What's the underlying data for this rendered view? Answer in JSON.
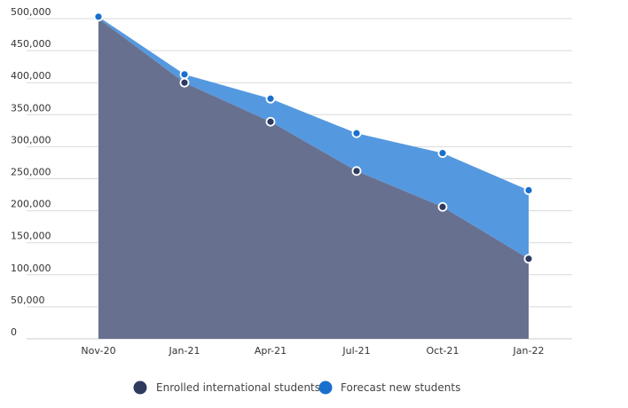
{
  "chart_data": {
    "type": "area",
    "stacked": true,
    "categories": [
      "Nov-20",
      "Jan-21",
      "Apr-21",
      "Jul-21",
      "Oct-21",
      "Jan-22"
    ],
    "y_ticks": [
      "0",
      "50,000",
      "100,000",
      "150,000",
      "200,000",
      "250,000",
      "300,000",
      "350,000",
      "400,000",
      "450,000",
      "500,000"
    ],
    "ylim": [
      0,
      500000
    ],
    "grid": true,
    "legend_position": "bottom",
    "title": "",
    "xlabel": "",
    "ylabel": "",
    "series": [
      {
        "name": "Enrolled international students",
        "color": "#687090",
        "marker_color": "#2e3a5e",
        "values": [
          500000,
          400000,
          339000,
          262000,
          206000,
          125000
        ]
      },
      {
        "name": "Forecast new students",
        "color": "#5499e0",
        "marker_color": "#1a6fcc",
        "values": [
          3000,
          13000,
          36000,
          59000,
          84000,
          107000
        ]
      }
    ]
  }
}
